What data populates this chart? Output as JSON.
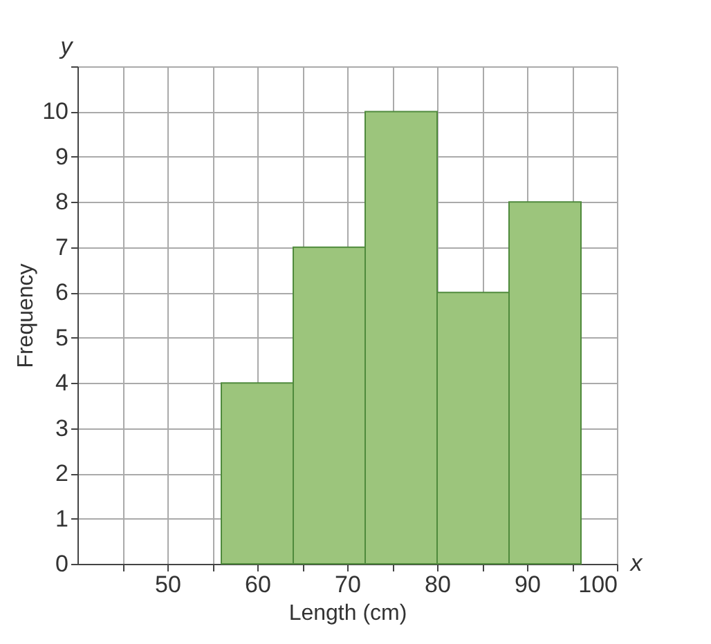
{
  "chart_data": {
    "type": "histogram",
    "xlabel": "Length (cm)",
    "ylabel": "Frequency",
    "bins": [
      56,
      64,
      72,
      80,
      88,
      96
    ],
    "values": [
      4,
      7,
      10,
      6,
      8
    ],
    "color": "#9cc57c",
    "xlim": [
      40,
      100
    ],
    "xticks": [
      {
        "value": 45,
        "label": null
      },
      50,
      {
        "value": 55,
        "label": null
      },
      60,
      {
        "value": 65,
        "label": null
      },
      70,
      {
        "value": 75,
        "label": null
      },
      80,
      {
        "value": 85,
        "label": null
      },
      90,
      {
        "value": 95,
        "label": null
      },
      100
    ],
    "ylim": [
      0,
      11
    ],
    "yticks": [
      0,
      1,
      2,
      3,
      4,
      5,
      6,
      7,
      8,
      9,
      10,
      {
        "value": 11,
        "label": null
      }
    ],
    "grid": true,
    "annotations": [
      "x",
      "y"
    ]
  }
}
